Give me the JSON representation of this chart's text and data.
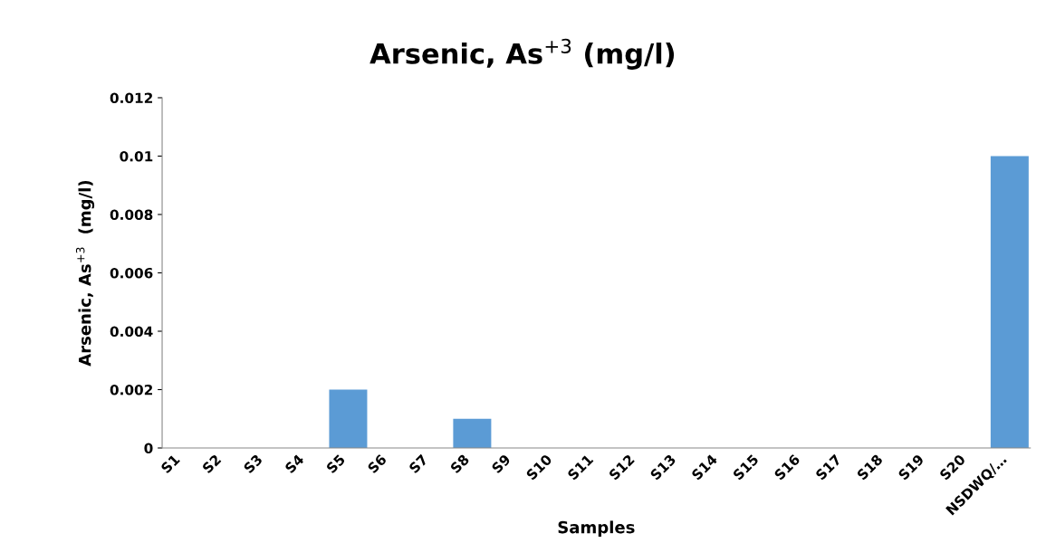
{
  "chart_data": {
    "type": "bar",
    "title": "Arsenic, As$^{+3}$ (mg/l)",
    "xlabel": "Samples",
    "ylabel": "Arsenic, As$^{+3}$  (mg/l)",
    "categories": [
      "S1",
      "S2",
      "S3",
      "S4",
      "S5",
      "S6",
      "S7",
      "S8",
      "S9",
      "S10",
      "S11",
      "S12",
      "S13",
      "S14",
      "S15",
      "S16",
      "S17",
      "S18",
      "S19",
      "S20",
      "NSDWQ/…"
    ],
    "values": [
      0,
      0,
      0,
      0,
      0.002,
      0,
      0,
      0.001,
      0,
      0,
      0,
      0,
      0,
      0,
      0,
      0,
      0,
      0,
      0,
      0,
      0.01
    ],
    "color": "#5b9bd5",
    "ylim": [
      0,
      0.012
    ],
    "yticks": [
      0,
      0.002,
      0.004,
      0.006,
      0.008,
      0.01,
      0.012
    ],
    "grid": false,
    "legend": false
  }
}
